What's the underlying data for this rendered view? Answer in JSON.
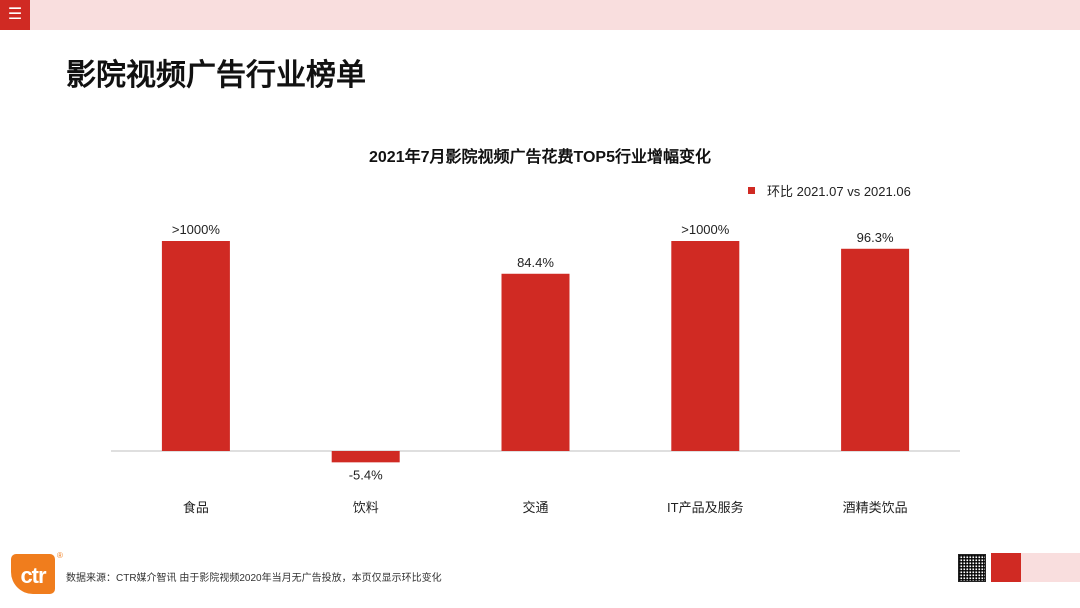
{
  "header": {
    "menu_icon": "hamburger-icon"
  },
  "page": {
    "title": "影院视频广告行业榜单"
  },
  "chart_data": {
    "type": "bar",
    "title": "2021年7月影院视频广告花费TOP5行业增幅变化",
    "categories": [
      "食品",
      "饮料",
      "交通",
      "IT产品及服务",
      "酒精类饮品"
    ],
    "series": [
      {
        "name": "环比 2021.07 vs 2021.06",
        "values": [
          100,
          -5.4,
          84.4,
          100,
          96.3
        ],
        "labels": [
          ">1000%",
          "-5.4%",
          "84.4%",
          ">1000%",
          "96.3%"
        ],
        "color": "#d02a23"
      }
    ],
    "ylim": [
      -5.4,
      100
    ],
    "legend_position": "top-right",
    "grid": false
  },
  "footer": {
    "logo_text": "ctr",
    "logo_mark": "®",
    "source": "数据来源：CTR媒介智讯   由于影院视频2020年当月无广告投放，本页仅显示环比变化",
    "logo_color": "#f07d1d"
  }
}
